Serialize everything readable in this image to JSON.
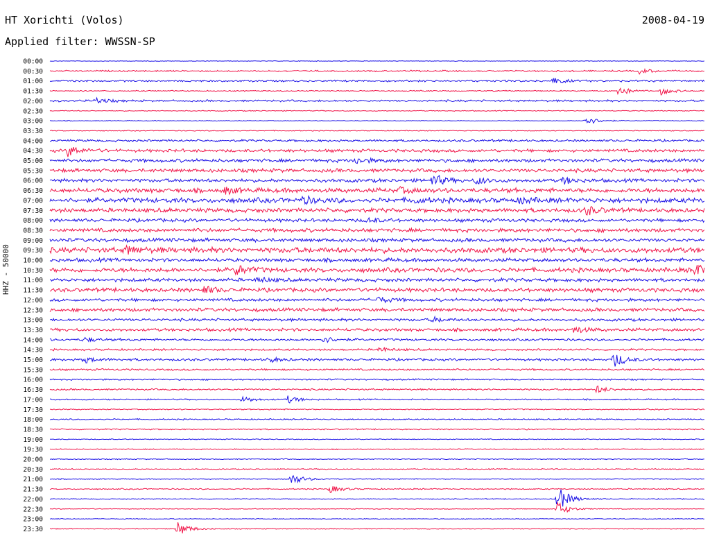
{
  "header": {
    "station": "HT Xorichti (Volos)",
    "date": "2008-04-19",
    "filter": "Applied filter: WWSSN-SP"
  },
  "chart_data": {
    "type": "line",
    "title": "HT Xorichti (Volos)",
    "date": "2008-04-19",
    "filter": "Applied filter: WWSSN-SP",
    "ylabel": "HHZ - 50000",
    "colors": [
      "#1a10e6",
      "#f01448"
    ],
    "row_times": [
      "00:00",
      "00:30",
      "01:00",
      "01:30",
      "02:00",
      "02:30",
      "03:00",
      "03:30",
      "04:00",
      "04:30",
      "05:00",
      "05:30",
      "06:00",
      "06:30",
      "07:00",
      "07:30",
      "08:00",
      "08:30",
      "09:00",
      "09:30",
      "10:00",
      "10:30",
      "11:00",
      "11:30",
      "12:00",
      "12:30",
      "13:00",
      "13:30",
      "14:00",
      "14:30",
      "15:00",
      "15:30",
      "16:00",
      "16:30",
      "17:00",
      "17:30",
      "18:00",
      "18:30",
      "19:00",
      "19:30",
      "20:00",
      "20:30",
      "21:00",
      "21:30",
      "22:00",
      "22:30",
      "23:00",
      "23:30"
    ],
    "noise_level": [
      0.4,
      1.0,
      1.2,
      0.7,
      1.3,
      0.6,
      0.5,
      0.6,
      1.5,
      2.0,
      2.2,
      2.4,
      2.3,
      3.0,
      3.3,
      2.8,
      2.2,
      2.5,
      2.4,
      3.6,
      2.4,
      3.0,
      2.3,
      2.6,
      2.0,
      2.3,
      1.8,
      2.0,
      1.5,
      1.3,
      1.6,
      1.2,
      1.0,
      1.1,
      0.9,
      0.8,
      0.9,
      0.8,
      0.6,
      0.7,
      0.6,
      0.7,
      0.6,
      0.8,
      0.6,
      0.5,
      0.5,
      0.6
    ],
    "events": [
      {
        "row": 1,
        "minute": 27,
        "amp": 4
      },
      {
        "row": 2,
        "minute": 23,
        "amp": 5
      },
      {
        "row": 3,
        "minute": 26,
        "amp": 8
      },
      {
        "row": 3,
        "minute": 28,
        "amp": 6
      },
      {
        "row": 4,
        "minute": 2,
        "amp": 5
      },
      {
        "row": 6,
        "minute": 24.5,
        "amp": 8
      },
      {
        "row": 9,
        "minute": 0.8,
        "amp": 9
      },
      {
        "row": 10,
        "minute": 14,
        "amp": 5
      },
      {
        "row": 12,
        "minute": 17.5,
        "amp": 10
      },
      {
        "row": 12,
        "minute": 19.5,
        "amp": 6
      },
      {
        "row": 12,
        "minute": 23.5,
        "amp": 5
      },
      {
        "row": 13,
        "minute": 8,
        "amp": 5
      },
      {
        "row": 13,
        "minute": 16,
        "amp": 4
      },
      {
        "row": 14,
        "minute": 11.5,
        "amp": 6
      },
      {
        "row": 14,
        "minute": 16.5,
        "amp": 4
      },
      {
        "row": 14,
        "minute": 21.5,
        "amp": 4
      },
      {
        "row": 15,
        "minute": 24.5,
        "amp": 7
      },
      {
        "row": 16,
        "minute": 14.5,
        "amp": 4
      },
      {
        "row": 19,
        "minute": 3.5,
        "amp": 6
      },
      {
        "row": 21,
        "minute": 8.5,
        "amp": 8
      },
      {
        "row": 21,
        "minute": 29.5,
        "amp": 9
      },
      {
        "row": 22,
        "minute": 9.5,
        "amp": 4
      },
      {
        "row": 23,
        "minute": 7,
        "amp": 6
      },
      {
        "row": 24,
        "minute": 15,
        "amp": 5
      },
      {
        "row": 26,
        "minute": 17.5,
        "amp": 4
      },
      {
        "row": 27,
        "minute": 24,
        "amp": 6
      },
      {
        "row": 28,
        "minute": 12.5,
        "amp": 5
      },
      {
        "row": 28,
        "minute": 1.5,
        "amp": 4
      },
      {
        "row": 29,
        "minute": 15,
        "amp": 4
      },
      {
        "row": 30,
        "minute": 25.8,
        "amp": 12
      },
      {
        "row": 30,
        "minute": 1.5,
        "amp": 5
      },
      {
        "row": 30,
        "minute": 10,
        "amp": 4
      },
      {
        "row": 33,
        "minute": 25,
        "amp": 6
      },
      {
        "row": 34,
        "minute": 8.8,
        "amp": 5
      },
      {
        "row": 34,
        "minute": 10.9,
        "amp": 5
      },
      {
        "row": 42,
        "minute": 11,
        "amp": 10
      },
      {
        "row": 43,
        "minute": 12.8,
        "amp": 6
      },
      {
        "row": 44,
        "minute": 23.2,
        "amp": 22
      },
      {
        "row": 45,
        "minute": 23.2,
        "amp": 12
      },
      {
        "row": 47,
        "minute": 5.8,
        "amp": 12
      }
    ]
  }
}
